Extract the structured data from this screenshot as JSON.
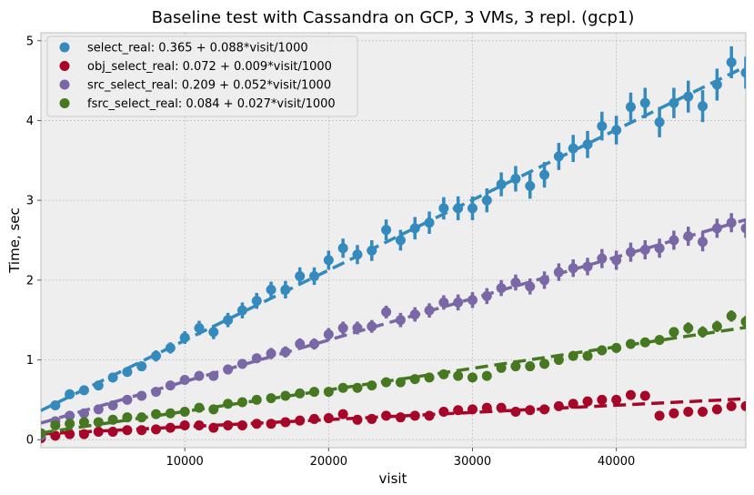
{
  "chart_data": {
    "type": "scatter",
    "title": "Baseline test with Cassandra on GCP, 3 VMs, 3 repl. (gcp1)",
    "xlabel": "visit",
    "ylabel": "Time, sec",
    "xlim": [
      0,
      49000
    ],
    "ylim": [
      -0.1,
      5.1
    ],
    "xticks": [
      10000,
      20000,
      30000,
      40000
    ],
    "yticks": [
      0,
      1,
      2,
      3,
      4,
      5
    ],
    "grid": true,
    "legend_position": "top-left",
    "series": [
      {
        "name": "select_real: 0.365 + 0.088*visit/1000",
        "color": "#348ABD",
        "fit": {
          "intercept": 0.365,
          "slope_per_1000": 0.088
        },
        "x": [
          0,
          1000,
          2000,
          3000,
          4000,
          5000,
          6000,
          7000,
          8000,
          9000,
          10000,
          11000,
          12000,
          13000,
          14000,
          15000,
          16000,
          17000,
          18000,
          19000,
          20000,
          21000,
          22000,
          23000,
          24000,
          25000,
          26000,
          27000,
          28000,
          29000,
          30000,
          31000,
          32000,
          33000,
          34000,
          35000,
          36000,
          37000,
          38000,
          39000,
          40000,
          41000,
          42000,
          43000,
          44000,
          45000,
          46000,
          47000,
          48000,
          49000
        ],
        "values": [
          0.08,
          0.43,
          0.57,
          0.62,
          0.68,
          0.78,
          0.85,
          0.92,
          1.05,
          1.15,
          1.28,
          1.4,
          1.35,
          1.5,
          1.62,
          1.74,
          1.88,
          1.88,
          2.05,
          2.05,
          2.25,
          2.4,
          2.32,
          2.37,
          2.63,
          2.5,
          2.65,
          2.72,
          2.9,
          2.9,
          2.9,
          3.0,
          3.2,
          3.27,
          3.18,
          3.32,
          3.55,
          3.65,
          3.7,
          3.93,
          3.88,
          4.17,
          4.22,
          3.98,
          4.22,
          4.3,
          4.18,
          4.45,
          4.73,
          4.6
        ],
        "errors": [
          0.05,
          0.05,
          0.05,
          0.05,
          0.05,
          0.06,
          0.06,
          0.06,
          0.07,
          0.07,
          0.08,
          0.09,
          0.09,
          0.09,
          0.1,
          0.1,
          0.1,
          0.11,
          0.11,
          0.11,
          0.12,
          0.12,
          0.12,
          0.13,
          0.13,
          0.13,
          0.14,
          0.14,
          0.14,
          0.15,
          0.15,
          0.15,
          0.15,
          0.16,
          0.16,
          0.16,
          0.17,
          0.17,
          0.17,
          0.18,
          0.18,
          0.18,
          0.19,
          0.19,
          0.19,
          0.2,
          0.2,
          0.2,
          0.2,
          0.2
        ]
      },
      {
        "name": "obj_select_real: 0.072 + 0.009*visit/1000",
        "color": "#A60628",
        "fit": {
          "intercept": 0.072,
          "slope_per_1000": 0.009
        },
        "x": [
          0,
          1000,
          2000,
          3000,
          4000,
          5000,
          6000,
          7000,
          8000,
          9000,
          10000,
          11000,
          12000,
          13000,
          14000,
          15000,
          16000,
          17000,
          18000,
          19000,
          20000,
          21000,
          22000,
          23000,
          24000,
          25000,
          26000,
          27000,
          28000,
          29000,
          30000,
          31000,
          32000,
          33000,
          34000,
          35000,
          36000,
          37000,
          38000,
          39000,
          40000,
          41000,
          42000,
          43000,
          44000,
          45000,
          46000,
          47000,
          48000,
          49000
        ],
        "values": [
          0.02,
          0.05,
          0.07,
          0.07,
          0.1,
          0.1,
          0.12,
          0.12,
          0.13,
          0.15,
          0.18,
          0.18,
          0.15,
          0.18,
          0.18,
          0.2,
          0.2,
          0.22,
          0.24,
          0.26,
          0.27,
          0.32,
          0.25,
          0.26,
          0.3,
          0.28,
          0.3,
          0.3,
          0.35,
          0.37,
          0.38,
          0.4,
          0.4,
          0.35,
          0.37,
          0.38,
          0.42,
          0.45,
          0.48,
          0.5,
          0.5,
          0.56,
          0.55,
          0.3,
          0.33,
          0.35,
          0.35,
          0.38,
          0.42,
          0.42
        ],
        "errors": [
          0.02,
          0.02,
          0.02,
          0.02,
          0.02,
          0.02,
          0.02,
          0.02,
          0.02,
          0.02,
          0.02,
          0.02,
          0.02,
          0.02,
          0.02,
          0.02,
          0.02,
          0.02,
          0.02,
          0.02,
          0.02,
          0.02,
          0.02,
          0.02,
          0.02,
          0.02,
          0.02,
          0.02,
          0.02,
          0.02,
          0.02,
          0.02,
          0.02,
          0.02,
          0.02,
          0.02,
          0.02,
          0.02,
          0.02,
          0.02,
          0.02,
          0.02,
          0.02,
          0.02,
          0.02,
          0.02,
          0.02,
          0.02,
          0.02,
          0.02
        ]
      },
      {
        "name": "src_select_real: 0.209 + 0.052*visit/1000",
        "color": "#7A68A6",
        "fit": {
          "intercept": 0.209,
          "slope_per_1000": 0.052
        },
        "x": [
          0,
          1000,
          2000,
          3000,
          4000,
          5000,
          6000,
          7000,
          8000,
          9000,
          10000,
          11000,
          12000,
          13000,
          14000,
          15000,
          16000,
          17000,
          18000,
          19000,
          20000,
          21000,
          22000,
          23000,
          24000,
          25000,
          26000,
          27000,
          28000,
          29000,
          30000,
          31000,
          32000,
          33000,
          34000,
          35000,
          36000,
          37000,
          38000,
          39000,
          40000,
          41000,
          42000,
          43000,
          44000,
          45000,
          46000,
          47000,
          48000,
          49000
        ],
        "values": [
          0.05,
          0.23,
          0.3,
          0.33,
          0.38,
          0.43,
          0.5,
          0.55,
          0.6,
          0.68,
          0.75,
          0.8,
          0.8,
          0.88,
          0.95,
          1.02,
          1.08,
          1.1,
          1.2,
          1.2,
          1.32,
          1.4,
          1.4,
          1.42,
          1.6,
          1.5,
          1.57,
          1.62,
          1.72,
          1.72,
          1.75,
          1.8,
          1.9,
          1.97,
          1.92,
          2.0,
          2.1,
          2.15,
          2.17,
          2.27,
          2.25,
          2.35,
          2.38,
          2.4,
          2.5,
          2.55,
          2.48,
          2.65,
          2.72,
          2.65
        ],
        "errors": [
          0.03,
          0.03,
          0.03,
          0.04,
          0.04,
          0.04,
          0.04,
          0.05,
          0.05,
          0.05,
          0.05,
          0.06,
          0.06,
          0.06,
          0.06,
          0.06,
          0.07,
          0.07,
          0.07,
          0.07,
          0.08,
          0.08,
          0.08,
          0.08,
          0.08,
          0.09,
          0.09,
          0.09,
          0.09,
          0.1,
          0.1,
          0.1,
          0.1,
          0.1,
          0.1,
          0.11,
          0.11,
          0.11,
          0.11,
          0.12,
          0.12,
          0.12,
          0.12,
          0.12,
          0.12,
          0.12,
          0.12,
          0.12,
          0.12,
          0.12
        ]
      },
      {
        "name": "fsrc_select_real: 0.084 + 0.027*visit/1000",
        "color": "#467821",
        "fit": {
          "intercept": 0.084,
          "slope_per_1000": 0.027
        },
        "x": [
          0,
          1000,
          2000,
          3000,
          4000,
          5000,
          6000,
          7000,
          8000,
          9000,
          10000,
          11000,
          12000,
          13000,
          14000,
          15000,
          16000,
          17000,
          18000,
          19000,
          20000,
          21000,
          22000,
          23000,
          24000,
          25000,
          26000,
          27000,
          28000,
          29000,
          30000,
          31000,
          32000,
          33000,
          34000,
          35000,
          36000,
          37000,
          38000,
          39000,
          40000,
          41000,
          42000,
          43000,
          44000,
          45000,
          46000,
          47000,
          48000,
          49000
        ],
        "values": [
          0.08,
          0.18,
          0.2,
          0.22,
          0.22,
          0.25,
          0.28,
          0.28,
          0.32,
          0.33,
          0.35,
          0.4,
          0.38,
          0.45,
          0.47,
          0.5,
          0.52,
          0.55,
          0.58,
          0.6,
          0.6,
          0.65,
          0.65,
          0.68,
          0.72,
          0.72,
          0.76,
          0.78,
          0.82,
          0.8,
          0.78,
          0.8,
          0.9,
          0.92,
          0.92,
          0.95,
          1.0,
          1.05,
          1.05,
          1.12,
          1.15,
          1.2,
          1.22,
          1.25,
          1.35,
          1.4,
          1.35,
          1.42,
          1.55,
          1.48
        ],
        "errors": [
          0.03,
          0.03,
          0.03,
          0.03,
          0.03,
          0.03,
          0.03,
          0.03,
          0.03,
          0.03,
          0.04,
          0.04,
          0.04,
          0.04,
          0.04,
          0.04,
          0.04,
          0.04,
          0.04,
          0.04,
          0.05,
          0.05,
          0.05,
          0.05,
          0.05,
          0.05,
          0.05,
          0.05,
          0.05,
          0.05,
          0.05,
          0.05,
          0.05,
          0.05,
          0.05,
          0.06,
          0.06,
          0.06,
          0.06,
          0.06,
          0.06,
          0.06,
          0.06,
          0.06,
          0.06,
          0.07,
          0.07,
          0.07,
          0.07,
          0.07
        ]
      }
    ]
  }
}
